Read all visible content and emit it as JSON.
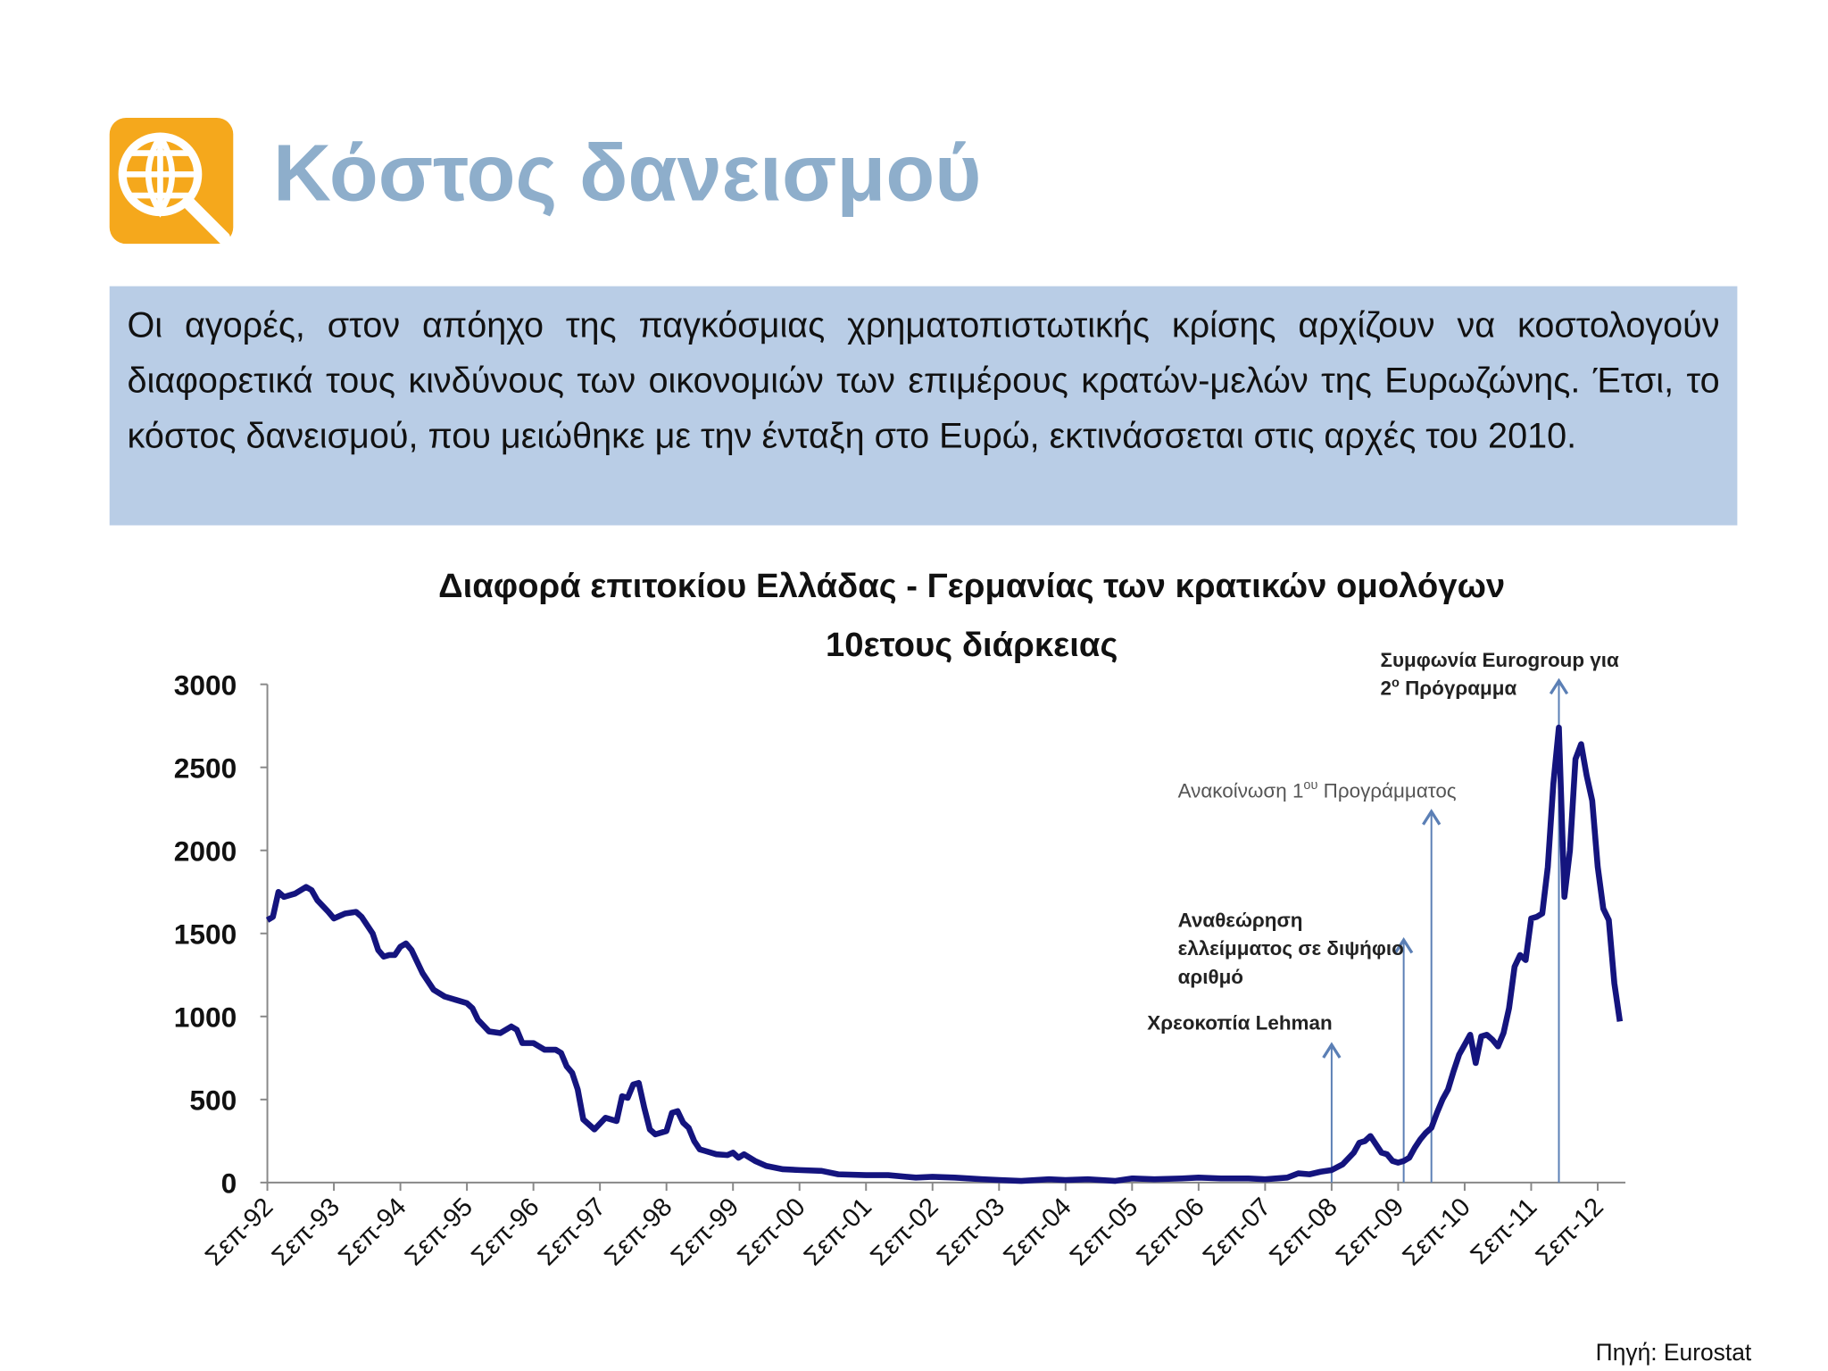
{
  "title": "Κόστος δανεισμού",
  "text": "Οι αγορές, στον απόηχο της παγκόσμιας χρηματοπιστωτικής κρίσης αρχίζουν να κοστολογούν διαφορετικά τους κινδύνους των οικονομιών των επιμέρους κρατών-μελών της Ευρωζώνης. Έτσι, το κόστος δανεισμού, που μειώθηκε με την ένταξη στο Ευρώ, εκτινάσσεται στις αρχές του 2010.",
  "source": "Πηγή: Eurostat",
  "chart_data": {
    "type": "line",
    "title": [
      "Διαφορά επιτοκίου Ελλάδας - Γερμανίας των κρατικών ομολόγων",
      "10ετους διάρκειας"
    ],
    "color": "#14147e",
    "x": [
      "1992-09",
      "1992-10",
      "1992-11",
      "1992-12",
      "1993-02",
      "1993-04",
      "1993-05",
      "1993-06",
      "1993-08",
      "1993-09",
      "1993-11",
      "1994-01",
      "1994-02",
      "1994-04",
      "1994-05",
      "1994-06",
      "1994-07",
      "1994-08",
      "1994-09",
      "1994-10",
      "1994-11",
      "1995-01",
      "1995-03",
      "1995-05",
      "1995-07",
      "1995-09",
      "1995-10",
      "1995-11",
      "1996-01",
      "1996-03",
      "1996-05",
      "1996-06",
      "1996-07",
      "1996-09",
      "1996-10",
      "1996-11",
      "1997-01",
      "1997-02",
      "1997-03",
      "1997-04",
      "1997-05",
      "1997-06",
      "1997-08",
      "1997-10",
      "1997-12",
      "1998-01",
      "1998-02",
      "1998-03",
      "1998-04",
      "1998-05",
      "1998-06",
      "1998-07",
      "1998-09",
      "1998-10",
      "1998-11",
      "1998-12",
      "1999-01",
      "1999-02",
      "1999-03",
      "1999-04",
      "1999-06",
      "1999-08",
      "1999-09",
      "1999-10",
      "1999-11",
      "2000-01",
      "2000-03",
      "2000-06",
      "2000-09",
      "2001-01",
      "2001-04",
      "2001-09",
      "2002-01",
      "2002-06",
      "2002-09",
      "2003-01",
      "2003-06",
      "2003-09",
      "2004-01",
      "2004-06",
      "2004-09",
      "2005-01",
      "2005-06",
      "2005-09",
      "2006-01",
      "2006-06",
      "2006-09",
      "2007-01",
      "2007-06",
      "2007-09",
      "2008-01",
      "2008-03",
      "2008-05",
      "2008-07",
      "2008-09",
      "2008-11",
      "2009-01",
      "2009-02",
      "2009-03",
      "2009-04",
      "2009-05",
      "2009-06",
      "2009-07",
      "2009-08",
      "2009-09",
      "2009-10",
      "2009-11",
      "2009-12",
      "2010-01",
      "2010-02",
      "2010-03",
      "2010-04",
      "2010-05",
      "2010-06",
      "2010-07",
      "2010-08",
      "2010-09",
      "2010-10",
      "2010-11",
      "2010-12",
      "2011-01",
      "2011-02",
      "2011-03",
      "2011-04",
      "2011-05",
      "2011-06",
      "2011-07",
      "2011-08",
      "2011-09",
      "2011-10",
      "2011-11",
      "2011-12",
      "2012-01",
      "2012-02",
      "2012-03",
      "2012-04",
      "2012-05",
      "2012-06",
      "2012-07",
      "2012-08",
      "2012-09",
      "2012-10",
      "2012-11",
      "2012-12",
      "2013-01"
    ],
    "values": [
      1580,
      1600,
      1750,
      1720,
      1740,
      1780,
      1760,
      1700,
      1630,
      1590,
      1620,
      1630,
      1600,
      1500,
      1400,
      1360,
      1370,
      1370,
      1420,
      1440,
      1400,
      1260,
      1160,
      1120,
      1100,
      1080,
      1050,
      980,
      910,
      900,
      940,
      920,
      840,
      840,
      820,
      800,
      800,
      780,
      700,
      660,
      560,
      380,
      320,
      390,
      370,
      520,
      510,
      590,
      600,
      450,
      320,
      290,
      310,
      420,
      430,
      360,
      330,
      250,
      200,
      190,
      170,
      165,
      180,
      150,
      170,
      130,
      100,
      80,
      75,
      70,
      50,
      45,
      45,
      30,
      35,
      30,
      20,
      15,
      10,
      20,
      15,
      20,
      10,
      25,
      20,
      25,
      30,
      25,
      25,
      20,
      30,
      55,
      50,
      65,
      75,
      110,
      180,
      240,
      250,
      280,
      230,
      180,
      170,
      130,
      120,
      130,
      150,
      210,
      260,
      300,
      330,
      420,
      500,
      560,
      670,
      770,
      830,
      890,
      720,
      880,
      890,
      860,
      820,
      900,
      1050,
      1300,
      1370,
      1340,
      1590,
      1600,
      1620,
      1900,
      2400,
      2740,
      1720,
      2000,
      2550,
      2640,
      2450,
      2300,
      1900,
      1650,
      1580,
      1200,
      970
    ],
    "xlim": [
      "1992-09",
      "2013-02"
    ],
    "xticks": [
      {
        "value": "1992-09",
        "label": "Σεπ-92"
      },
      {
        "value": "1993-09",
        "label": "Σεπ-93"
      },
      {
        "value": "1994-09",
        "label": "Σεπ-94"
      },
      {
        "value": "1995-09",
        "label": "Σεπ-95"
      },
      {
        "value": "1996-09",
        "label": "Σεπ-96"
      },
      {
        "value": "1997-09",
        "label": "Σεπ-97"
      },
      {
        "value": "1998-09",
        "label": "Σεπ-98"
      },
      {
        "value": "1999-09",
        "label": "Σεπ-99"
      },
      {
        "value": "2000-09",
        "label": "Σεπ-00"
      },
      {
        "value": "2001-09",
        "label": "Σεπ-01"
      },
      {
        "value": "2002-09",
        "label": "Σεπ-02"
      },
      {
        "value": "2003-09",
        "label": "Σεπ-03"
      },
      {
        "value": "2004-09",
        "label": "Σεπ-04"
      },
      {
        "value": "2005-09",
        "label": "Σεπ-05"
      },
      {
        "value": "2006-09",
        "label": "Σεπ-06"
      },
      {
        "value": "2007-09",
        "label": "Σεπ-07"
      },
      {
        "value": "2008-09",
        "label": "Σεπ-08"
      },
      {
        "value": "2009-09",
        "label": "Σεπ-09"
      },
      {
        "value": "2010-09",
        "label": "Σεπ-10"
      },
      {
        "value": "2011-09",
        "label": "Σεπ-11"
      },
      {
        "value": "2012-09",
        "label": "Σεπ-12"
      }
    ],
    "ylim": [
      0,
      3000
    ],
    "yticks": [
      0,
      500,
      1000,
      1500,
      2000,
      2500,
      3000
    ],
    "grid": false,
    "annotations": [
      {
        "x": "2008-09",
        "lines": [
          [
            "Χρεοκοπία Lehman"
          ]
        ]
      },
      {
        "x": "2009-10",
        "lines": [
          [
            "Αναθεώρηση"
          ],
          [
            "ελλείμματος σε διψήφιο"
          ],
          [
            "αριθμό"
          ]
        ]
      },
      {
        "x": "2010-03",
        "lines": [
          [
            "Ανακοίνωση 1",
            {
              "sup": "ου"
            },
            " Προγράμματος"
          ]
        ]
      },
      {
        "x": "2012-02",
        "lines": [
          [
            "Συμφωνία Eurogroup για"
          ],
          [
            "2",
            {
              "sup": "ο"
            },
            " Πρόγραμμα"
          ]
        ]
      }
    ]
  }
}
